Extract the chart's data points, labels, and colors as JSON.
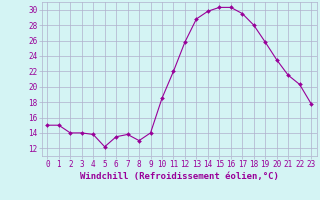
{
  "x": [
    0,
    1,
    2,
    3,
    4,
    5,
    6,
    7,
    8,
    9,
    10,
    11,
    12,
    13,
    14,
    15,
    16,
    17,
    18,
    19,
    20,
    21,
    22,
    23
  ],
  "y": [
    15.0,
    15.0,
    14.0,
    14.0,
    13.8,
    12.2,
    13.5,
    13.8,
    13.0,
    14.0,
    18.5,
    22.0,
    25.8,
    28.8,
    29.8,
    30.3,
    30.3,
    29.5,
    28.0,
    25.8,
    23.5,
    21.5,
    20.3,
    17.8
  ],
  "line_color": "#990099",
  "marker": "D",
  "marker_size": 2.0,
  "bg_color": "#d4f4f4",
  "grid_color": "#b0b0cc",
  "xlabel": "Windchill (Refroidissement éolien,°C)",
  "xlabel_color": "#990099",
  "ylim": [
    11,
    31
  ],
  "yticks": [
    12,
    14,
    16,
    18,
    20,
    22,
    24,
    26,
    28,
    30
  ],
  "xlim": [
    -0.5,
    23.5
  ],
  "xticks": [
    0,
    1,
    2,
    3,
    4,
    5,
    6,
    7,
    8,
    9,
    10,
    11,
    12,
    13,
    14,
    15,
    16,
    17,
    18,
    19,
    20,
    21,
    22,
    23
  ],
  "tick_fontsize": 5.5,
  "xlabel_fontsize": 6.5
}
